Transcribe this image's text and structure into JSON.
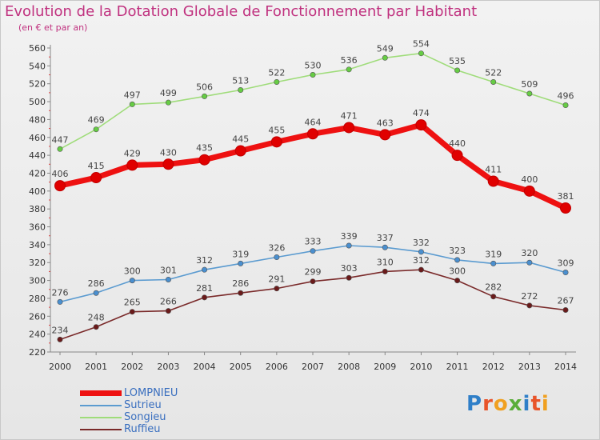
{
  "title": "Evolution de la Dotation Globale de Fonctionnement par Habitant",
  "subtitle": "(en € et par an)",
  "logo": {
    "letters": [
      {
        "char": "P",
        "color": "#2f7fc8"
      },
      {
        "char": "r",
        "color": "#e8542a"
      },
      {
        "char": "o",
        "color": "#f0a020"
      },
      {
        "char": "x",
        "color": "#5aae3a"
      },
      {
        "char": "i",
        "color": "#2f7fc8"
      },
      {
        "char": "t",
        "color": "#e8542a"
      },
      {
        "char": "i",
        "color": "#f0a020"
      }
    ]
  },
  "chart_data": {
    "type": "line",
    "title": "Evolution de la Dotation Globale de Fonctionnement par Habitant",
    "subtitle": "(en € et par an)",
    "x": [
      "2000",
      "2001",
      "2002",
      "2003",
      "2004",
      "2005",
      "2006",
      "2007",
      "2008",
      "2009",
      "2010",
      "2011",
      "2012",
      "2013",
      "2014"
    ],
    "ylim": [
      220,
      560
    ],
    "yticks": [
      220,
      240,
      260,
      280,
      300,
      320,
      340,
      360,
      380,
      400,
      420,
      440,
      460,
      480,
      500,
      520,
      540,
      560
    ],
    "grid": false,
    "legend_position": "bottom-left",
    "series": [
      {
        "name": "LOMPNIEU",
        "color": "#ee1111",
        "marker": "#e00000",
        "emphasis": true,
        "values": [
          406,
          415,
          429,
          430,
          435,
          445,
          455,
          464,
          471,
          463,
          474,
          440,
          411,
          400,
          381
        ]
      },
      {
        "name": "Sutrieu",
        "color": "#5b9bd0",
        "marker": "#4a8fcf",
        "emphasis": false,
        "values": [
          276,
          286,
          300,
          301,
          312,
          319,
          326,
          333,
          339,
          337,
          332,
          323,
          319,
          320,
          309
        ]
      },
      {
        "name": "Songieu",
        "color": "#9fdc7a",
        "marker": "#66cc44",
        "emphasis": false,
        "values": [
          447,
          469,
          497,
          499,
          506,
          513,
          522,
          530,
          536,
          549,
          554,
          535,
          522,
          509,
          496
        ]
      },
      {
        "name": "Ruffieu",
        "color": "#7a2a2a",
        "marker": "#6a1a1a",
        "emphasis": false,
        "values": [
          234,
          248,
          265,
          266,
          281,
          286,
          291,
          299,
          303,
          310,
          312,
          300,
          282,
          272,
          267
        ]
      }
    ]
  }
}
